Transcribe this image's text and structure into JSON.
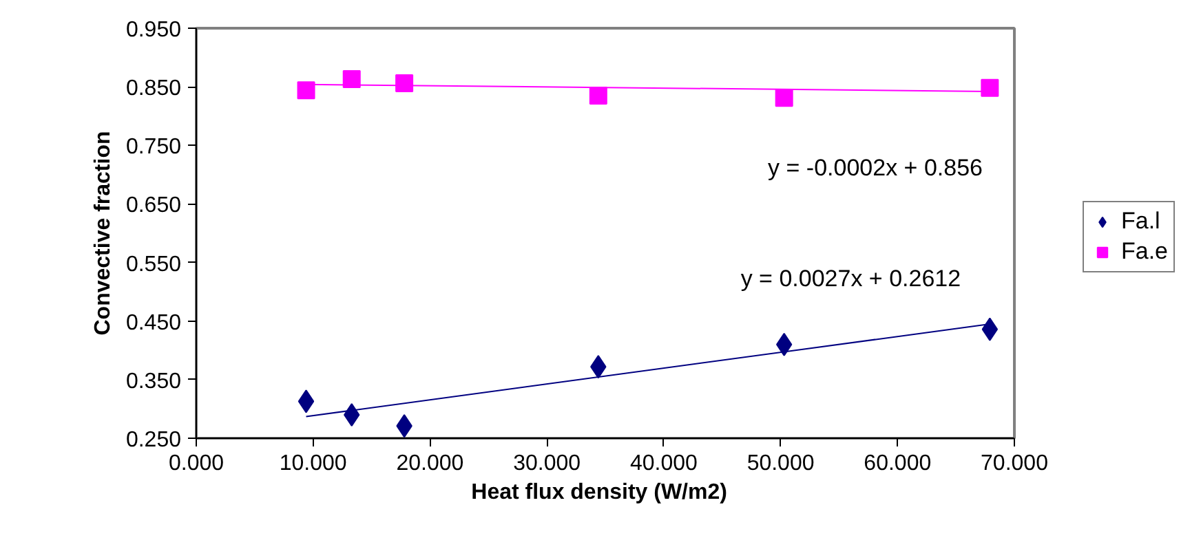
{
  "chart_data": {
    "type": "scatter",
    "xlabel": "Heat flux density   (W/m2)",
    "ylabel": "Convective fraction",
    "xlim": [
      0,
      70
    ],
    "ylim": [
      0.25,
      0.95
    ],
    "xticks": [
      {
        "value": 0,
        "label": "0.000"
      },
      {
        "value": 10,
        "label": "10.000"
      },
      {
        "value": 20,
        "label": "20.000"
      },
      {
        "value": 30,
        "label": "30.000"
      },
      {
        "value": 40,
        "label": "40.000"
      },
      {
        "value": 50,
        "label": "50.000"
      },
      {
        "value": 60,
        "label": "60.000"
      },
      {
        "value": 70,
        "label": "70.000"
      }
    ],
    "yticks": [
      {
        "value": 0.25,
        "label": "0.250"
      },
      {
        "value": 0.35,
        "label": "0.350"
      },
      {
        "value": 0.45,
        "label": "0.450"
      },
      {
        "value": 0.55,
        "label": "0.550"
      },
      {
        "value": 0.65,
        "label": "0.650"
      },
      {
        "value": 0.75,
        "label": "0.750"
      },
      {
        "value": 0.85,
        "label": "0.850"
      },
      {
        "value": 0.95,
        "label": "0.950"
      }
    ],
    "grid": false,
    "legend": "right",
    "series": [
      {
        "name": "Fa.l",
        "marker": "diamond",
        "color": "#000080",
        "x": [
          9.4,
          13.3,
          17.8,
          34.4,
          50.3,
          67.9
        ],
        "values": [
          0.313,
          0.29,
          0.271,
          0.372,
          0.41,
          0.436
        ]
      },
      {
        "name": "Fa.e",
        "marker": "square",
        "color": "#ff00ff",
        "x": [
          9.4,
          13.3,
          17.8,
          34.4,
          50.3,
          67.9
        ],
        "values": [
          0.844,
          0.863,
          0.856,
          0.835,
          0.831,
          0.848
        ]
      },
      {
        "type": "line",
        "marker": "none",
        "color": "#000080",
        "x": [
          9.4,
          67.9
        ],
        "values": [
          0.287,
          0.445
        ]
      },
      {
        "type": "line",
        "marker": "none",
        "color": "#ff00ff",
        "x": [
          9.4,
          67.9
        ],
        "values": [
          0.854,
          0.842
        ]
      }
    ],
    "annotations": [
      "y = -0.0002x + 0.856",
      "y = 0.0027x + 0.2612"
    ]
  }
}
